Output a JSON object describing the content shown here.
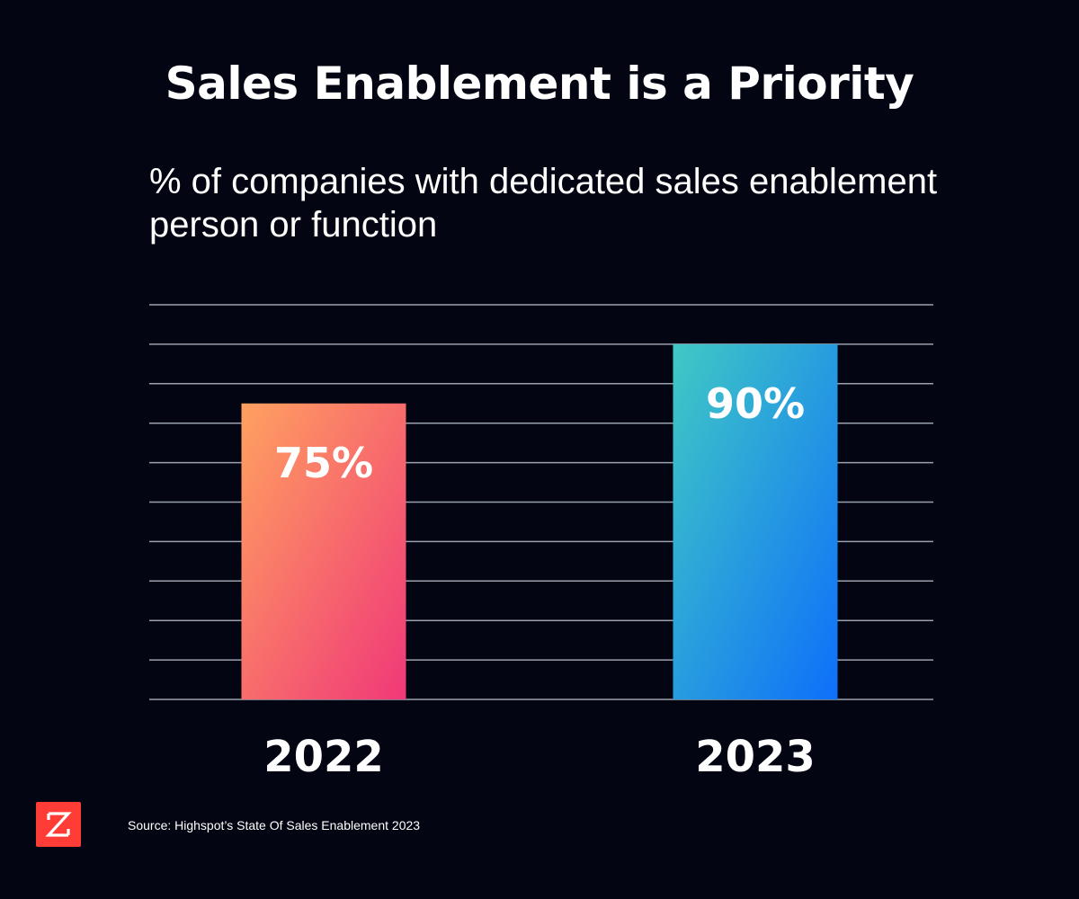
{
  "title": "Sales Enablement is a Priority",
  "subtitle": "% of companies with dedicated sales enablement person or function",
  "source": "Source:  Highspot’s State Of Sales Enablement 2023",
  "logo": {
    "icon": "zoominfo-z-logo-icon",
    "color": "#ff3c35"
  },
  "colors": {
    "background": "#030612",
    "gridline": "#9aa0ad",
    "bar_2022_gradient": [
      "#ffa160",
      "#f03878"
    ],
    "bar_2023_gradient": [
      "#40c9c4",
      "#0e6ffa"
    ]
  },
  "chart_data": {
    "type": "bar",
    "categories": [
      "2022",
      "2023"
    ],
    "values": [
      75,
      90
    ],
    "data_labels": [
      "75%",
      "90%"
    ],
    "title": "Sales Enablement is a Priority",
    "subtitle": "% of companies with dedicated sales enablement person or function",
    "xlabel": "",
    "ylabel": "",
    "ylim": [
      0,
      100
    ],
    "grid": true,
    "legend": "none"
  }
}
